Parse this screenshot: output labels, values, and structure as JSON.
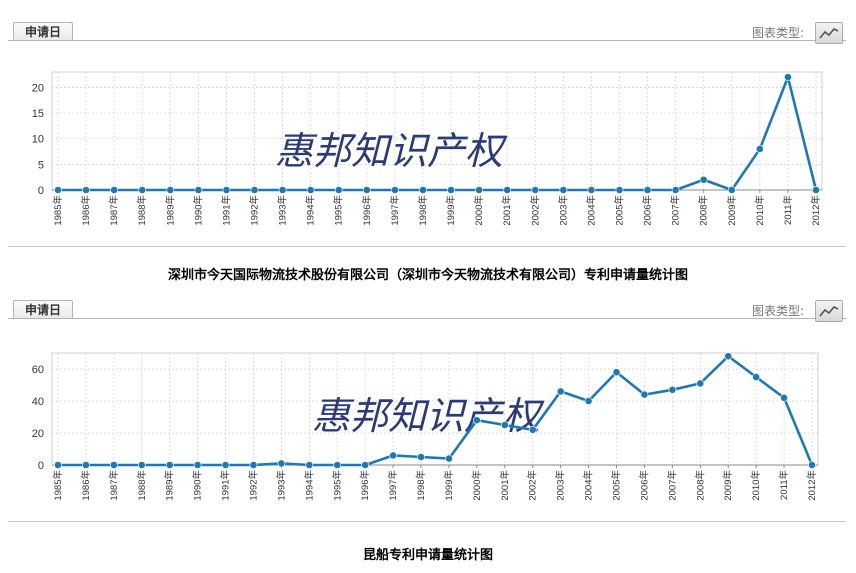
{
  "panels": [
    {
      "tab_label": "申请日",
      "chart_type_label": "图表类型:",
      "watermark": "惠邦知识产权",
      "caption": "深圳市今天国际物流技术股份有限公司（深圳市今天物流技术有限公司）专利申请量统计图"
    },
    {
      "tab_label": "申请日",
      "chart_type_label": "图表类型:",
      "watermark": "惠邦知识产权",
      "caption": "昆船专利申请量统计图"
    }
  ],
  "colors": {
    "line": "#1f78b4",
    "marker": "#1f78b4",
    "grid": "#d0d0d0",
    "axis": "#888888"
  },
  "icons": {
    "chart_type": "line-chart-icon"
  },
  "chart_data": [
    {
      "type": "line",
      "categories": [
        "1985年",
        "1986年",
        "1987年",
        "1988年",
        "1989年",
        "1990年",
        "1991年",
        "1992年",
        "1993年",
        "1994年",
        "1995年",
        "1996年",
        "1997年",
        "1998年",
        "1999年",
        "2000年",
        "2001年",
        "2002年",
        "2003年",
        "2004年",
        "2005年",
        "2006年",
        "2007年",
        "2008年",
        "2009年",
        "2010年",
        "2011年",
        "2012年"
      ],
      "values": [
        0,
        0,
        0,
        0,
        0,
        0,
        0,
        0,
        0,
        0,
        0,
        0,
        0,
        0,
        0,
        0,
        0,
        0,
        0,
        0,
        0,
        0,
        0,
        2,
        0,
        8,
        22,
        0
      ],
      "yticks": [
        0,
        5,
        10,
        15,
        20
      ],
      "ylim": [
        0,
        23
      ],
      "grid": true
    },
    {
      "type": "line",
      "categories": [
        "1985年",
        "1986年",
        "1987年",
        "1988年",
        "1989年",
        "1990年",
        "1991年",
        "1992年",
        "1993年",
        "1994年",
        "1995年",
        "1996年",
        "1997年",
        "1998年",
        "1999年",
        "2000年",
        "2001年",
        "2002年",
        "2003年",
        "2004年",
        "2005年",
        "2006年",
        "2007年",
        "2008年",
        "2009年",
        "2010年",
        "2011年",
        "2012年"
      ],
      "values": [
        0,
        0,
        0,
        0,
        0,
        0,
        0,
        0,
        1,
        0,
        0,
        0,
        6,
        5,
        4,
        28,
        25,
        22,
        46,
        40,
        58,
        44,
        47,
        51,
        68,
        55,
        42,
        0
      ],
      "yticks": [
        0,
        20,
        40,
        60
      ],
      "ylim": [
        0,
        70
      ],
      "grid": true
    }
  ]
}
